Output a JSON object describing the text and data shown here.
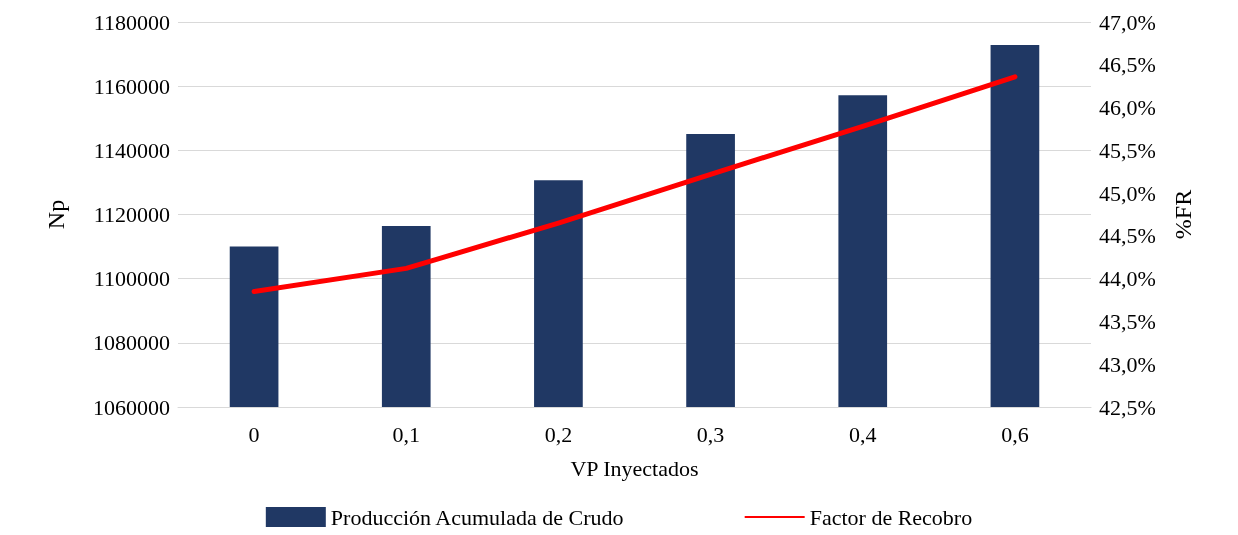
{
  "chart_data": {
    "type": "bar",
    "xlabel": "VP Inyectados",
    "ylabel": "Np",
    "y2label": "%FR",
    "categories": [
      "0",
      "0,1",
      "0,2",
      "0,3",
      "0,4",
      "0,6"
    ],
    "series": [
      {
        "name": "Producción Acumulada de Crudo",
        "color": "#203864",
        "values": [
          1110000,
          1116400,
          1130700,
          1145100,
          1157200,
          1172800
        ]
      },
      {
        "name": "Factor de Recobro",
        "type": "line",
        "axis": "y2",
        "color": "#ff0000",
        "values": [
          43.85,
          44.12,
          44.65,
          45.22,
          45.78,
          46.36
        ]
      }
    ],
    "ylim": [
      1060000,
      1180000
    ],
    "yticks": [
      1060000,
      1080000,
      1100000,
      1120000,
      1140000,
      1160000,
      1180000
    ],
    "y2lim": [
      42.5,
      47.0
    ],
    "y2ticks": [
      {
        "value": 42.5,
        "label": "42,5%"
      },
      {
        "value": 43.0,
        "label": "43,0%"
      },
      {
        "value": 43.5,
        "label": "43,5%"
      },
      {
        "value": 44.0,
        "label": "44,0%"
      },
      {
        "value": 44.5,
        "label": "44,5%"
      },
      {
        "value": 45.0,
        "label": "45,0%"
      },
      {
        "value": 45.5,
        "label": "45,5%"
      },
      {
        "value": 46.0,
        "label": "46,0%"
      },
      {
        "value": 46.5,
        "label": "46,5%"
      },
      {
        "value": 47.0,
        "label": "47,0%"
      }
    ],
    "grid": "y",
    "legend": "bottom",
    "marker": "none",
    "line_style": "solid"
  }
}
